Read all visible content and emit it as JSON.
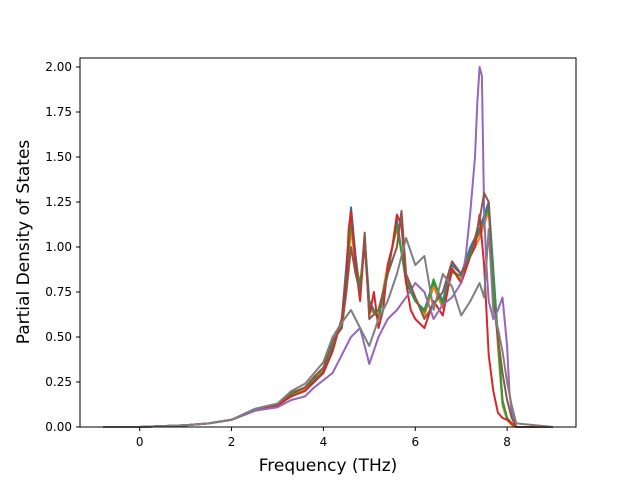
{
  "chart_data": {
    "type": "line",
    "xlabel": "Frequency (THz)",
    "ylabel": "Partial Density of States",
    "xlim": [
      -1.3,
      9.5
    ],
    "ylim": [
      0.0,
      2.05
    ],
    "x_ticks": [
      0,
      2,
      4,
      6,
      8
    ],
    "y_ticks": [
      0.0,
      0.25,
      0.5,
      0.75,
      1.0,
      1.25,
      1.5,
      1.75,
      2.0
    ],
    "x_tick_labels": [
      "0",
      "2",
      "4",
      "6",
      "8"
    ],
    "y_tick_labels": [
      "0.00",
      "0.25",
      "0.50",
      "0.75",
      "1.00",
      "1.25",
      "1.50",
      "1.75",
      "2.00"
    ],
    "grid": false,
    "series": [
      {
        "color": "#1f77b4",
        "x": [
          -0.8,
          0.0,
          0.5,
          1.0,
          1.5,
          2.0,
          2.5,
          3.0,
          3.3,
          3.6,
          3.8,
          4.0,
          4.2,
          4.4,
          4.5,
          4.6,
          4.7,
          4.8,
          4.9,
          5.0,
          5.2,
          5.4,
          5.6,
          5.8,
          6.0,
          6.2,
          6.4,
          6.6,
          6.8,
          7.0,
          7.2,
          7.4,
          7.6,
          7.8,
          7.9,
          8.0,
          8.1,
          8.2,
          9.0
        ],
        "y": [
          0.0,
          0.0,
          0.005,
          0.01,
          0.02,
          0.04,
          0.09,
          0.12,
          0.18,
          0.2,
          0.27,
          0.3,
          0.45,
          0.6,
          0.9,
          1.22,
          0.95,
          0.75,
          1.05,
          0.7,
          0.6,
          0.85,
          1.15,
          0.8,
          0.7,
          0.65,
          0.8,
          0.7,
          0.9,
          0.85,
          1.0,
          1.1,
          1.25,
          0.5,
          0.15,
          0.05,
          0.02,
          0.0,
          0.0
        ]
      },
      {
        "color": "#ff7f0e",
        "x": [
          -0.8,
          0.0,
          0.5,
          1.0,
          1.5,
          2.0,
          2.5,
          3.0,
          3.3,
          3.6,
          3.8,
          4.0,
          4.2,
          4.4,
          4.5,
          4.6,
          4.7,
          4.8,
          4.9,
          5.0,
          5.2,
          5.4,
          5.6,
          5.8,
          6.0,
          6.2,
          6.4,
          6.6,
          6.8,
          7.0,
          7.2,
          7.4,
          7.6,
          7.8,
          7.9,
          8.0,
          8.1,
          8.2,
          9.0
        ],
        "y": [
          0.0,
          0.0,
          0.005,
          0.01,
          0.02,
          0.04,
          0.09,
          0.12,
          0.17,
          0.21,
          0.28,
          0.32,
          0.48,
          0.55,
          0.8,
          1.1,
          0.9,
          0.8,
          1.0,
          0.65,
          0.62,
          0.9,
          1.1,
          0.85,
          0.72,
          0.62,
          0.78,
          0.66,
          0.88,
          0.82,
          0.95,
          1.05,
          1.2,
          0.45,
          0.12,
          0.04,
          0.01,
          0.0,
          0.0
        ]
      },
      {
        "color": "#2ca02c",
        "x": [
          -0.8,
          0.0,
          0.5,
          1.0,
          1.5,
          2.0,
          2.5,
          3.0,
          3.3,
          3.6,
          3.8,
          4.0,
          4.2,
          4.4,
          4.5,
          4.6,
          4.7,
          4.8,
          4.9,
          5.0,
          5.2,
          5.4,
          5.6,
          5.8,
          6.0,
          6.2,
          6.4,
          6.6,
          6.8,
          7.0,
          7.2,
          7.4,
          7.6,
          7.8,
          7.9,
          8.0,
          8.1,
          8.2,
          9.0
        ],
        "y": [
          0.0,
          0.0,
          0.005,
          0.01,
          0.02,
          0.04,
          0.09,
          0.12,
          0.18,
          0.22,
          0.26,
          0.31,
          0.46,
          0.58,
          0.85,
          1.15,
          0.92,
          0.78,
          1.02,
          0.68,
          0.6,
          0.88,
          1.12,
          0.82,
          0.7,
          0.64,
          0.82,
          0.68,
          0.86,
          0.84,
          0.98,
          1.08,
          1.22,
          0.48,
          0.14,
          0.05,
          0.02,
          0.0,
          0.0
        ]
      },
      {
        "color": "#d62728",
        "x": [
          -0.8,
          0.0,
          0.5,
          1.0,
          1.5,
          2.0,
          2.5,
          3.0,
          3.3,
          3.6,
          3.8,
          4.0,
          4.2,
          4.4,
          4.5,
          4.55,
          4.6,
          4.7,
          4.8,
          4.9,
          5.0,
          5.1,
          5.2,
          5.3,
          5.4,
          5.5,
          5.6,
          5.7,
          5.8,
          5.9,
          6.0,
          6.2,
          6.4,
          6.6,
          6.8,
          7.0,
          7.2,
          7.3,
          7.4,
          7.5,
          7.6,
          7.7,
          7.8,
          7.9,
          8.0,
          8.1,
          8.2,
          9.0
        ],
        "y": [
          0.0,
          0.0,
          0.005,
          0.01,
          0.02,
          0.04,
          0.09,
          0.12,
          0.17,
          0.2,
          0.25,
          0.3,
          0.42,
          0.6,
          0.82,
          1.1,
          1.2,
          0.9,
          0.7,
          1.05,
          0.62,
          0.75,
          0.55,
          0.65,
          0.9,
          1.0,
          1.18,
          1.12,
          0.8,
          0.65,
          0.6,
          0.55,
          0.7,
          0.62,
          0.88,
          0.8,
          0.95,
          1.0,
          1.18,
          0.9,
          0.4,
          0.2,
          0.08,
          0.05,
          0.04,
          0.02,
          0.0,
          0.0
        ]
      },
      {
        "color": "#9467bd",
        "x": [
          -0.8,
          0.0,
          0.5,
          1.0,
          1.5,
          2.0,
          2.5,
          3.0,
          3.3,
          3.6,
          3.8,
          4.0,
          4.2,
          4.4,
          4.6,
          4.8,
          5.0,
          5.2,
          5.4,
          5.6,
          5.8,
          6.0,
          6.2,
          6.4,
          6.6,
          6.8,
          7.0,
          7.1,
          7.2,
          7.3,
          7.35,
          7.4,
          7.45,
          7.5,
          7.55,
          7.6,
          7.7,
          7.8,
          7.9,
          8.0,
          8.05,
          8.1,
          8.2,
          9.0
        ],
        "y": [
          0.0,
          0.0,
          0.005,
          0.01,
          0.02,
          0.04,
          0.09,
          0.11,
          0.15,
          0.17,
          0.22,
          0.26,
          0.3,
          0.4,
          0.5,
          0.55,
          0.35,
          0.5,
          0.6,
          0.65,
          0.72,
          0.8,
          0.75,
          0.6,
          0.68,
          0.72,
          0.8,
          0.95,
          1.2,
          1.5,
          1.8,
          2.0,
          1.95,
          1.2,
          0.9,
          0.7,
          0.6,
          0.65,
          0.72,
          0.45,
          0.2,
          0.08,
          0.0,
          0.0
        ]
      },
      {
        "color": "#8c564b",
        "x": [
          -0.8,
          0.0,
          0.5,
          1.0,
          1.5,
          2.0,
          2.5,
          3.0,
          3.3,
          3.6,
          3.8,
          4.0,
          4.2,
          4.4,
          4.5,
          4.6,
          4.7,
          4.8,
          4.9,
          5.0,
          5.2,
          5.4,
          5.6,
          5.7,
          5.8,
          6.0,
          6.2,
          6.4,
          6.6,
          6.8,
          7.0,
          7.2,
          7.3,
          7.4,
          7.5,
          7.6,
          7.7,
          7.8,
          7.9,
          8.0,
          8.1,
          8.2,
          9.0
        ],
        "y": [
          0.0,
          0.0,
          0.005,
          0.01,
          0.02,
          0.04,
          0.1,
          0.13,
          0.19,
          0.22,
          0.28,
          0.33,
          0.48,
          0.55,
          0.75,
          1.0,
          0.85,
          0.75,
          1.08,
          0.6,
          0.65,
          0.85,
          1.0,
          1.2,
          0.85,
          0.72,
          0.6,
          0.68,
          0.75,
          0.92,
          0.85,
          0.95,
          1.05,
          1.15,
          1.3,
          1.25,
          0.7,
          0.5,
          0.3,
          0.15,
          0.05,
          0.0,
          0.0
        ]
      },
      {
        "color": "#7f7f7f",
        "x": [
          -0.8,
          0.0,
          0.5,
          1.0,
          1.5,
          2.0,
          2.5,
          3.0,
          3.3,
          3.6,
          3.8,
          4.0,
          4.2,
          4.4,
          4.6,
          4.8,
          5.0,
          5.2,
          5.4,
          5.6,
          5.8,
          6.0,
          6.2,
          6.4,
          6.6,
          6.8,
          7.0,
          7.2,
          7.4,
          7.5,
          7.6,
          7.7,
          7.8,
          7.9,
          8.0,
          8.1,
          8.2,
          9.0
        ],
        "y": [
          0.0,
          0.0,
          0.005,
          0.01,
          0.02,
          0.04,
          0.1,
          0.13,
          0.2,
          0.24,
          0.3,
          0.36,
          0.5,
          0.58,
          0.65,
          0.55,
          0.45,
          0.6,
          0.7,
          0.85,
          1.05,
          0.9,
          0.95,
          0.65,
          0.85,
          0.78,
          0.62,
          0.7,
          0.8,
          0.72,
          1.1,
          0.65,
          0.55,
          0.42,
          0.25,
          0.12,
          0.02,
          0.0
        ]
      }
    ]
  }
}
